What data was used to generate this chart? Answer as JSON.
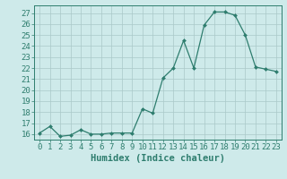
{
  "x": [
    0,
    1,
    2,
    3,
    4,
    5,
    6,
    7,
    8,
    9,
    10,
    11,
    12,
    13,
    14,
    15,
    16,
    17,
    18,
    19,
    20,
    21,
    22,
    23
  ],
  "y": [
    16.1,
    16.7,
    15.8,
    15.9,
    16.4,
    16.0,
    16.0,
    16.1,
    16.1,
    16.1,
    18.3,
    17.9,
    21.1,
    22.0,
    24.5,
    22.0,
    25.9,
    27.1,
    27.1,
    26.8,
    25.0,
    22.1,
    21.9,
    21.7
  ],
  "line_color": "#2e7d6e",
  "marker_color": "#2e7d6e",
  "bg_color": "#ceeaea",
  "grid_color": "#aac8c8",
  "axis_color": "#2e7d6e",
  "xlabel": "Humidex (Indice chaleur)",
  "ylabel_ticks": [
    16,
    17,
    18,
    19,
    20,
    21,
    22,
    23,
    24,
    25,
    26,
    27
  ],
  "ylim": [
    15.5,
    27.7
  ],
  "xlim": [
    -0.5,
    23.5
  ],
  "xlabel_fontsize": 7.5,
  "tick_fontsize": 6.5
}
